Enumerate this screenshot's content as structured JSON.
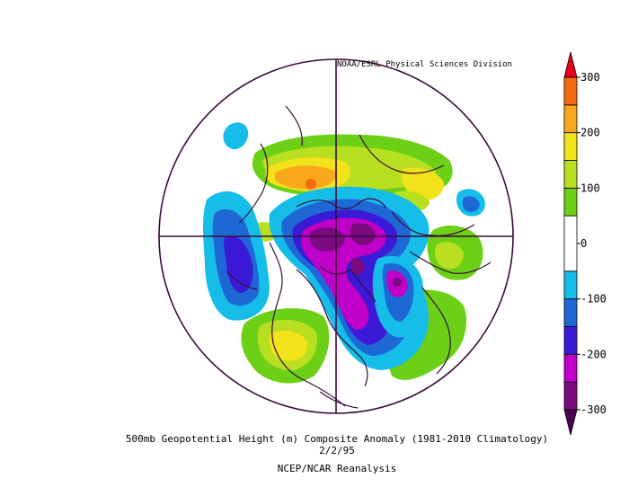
{
  "credit": "NOAA/ESRL Physical Sciences Division",
  "caption": {
    "title": "500mb Geopotential Height (m) Composite Anomaly (1981-2010 Climatology)",
    "date": "2/2/95",
    "source": "NCEP/NCAR Reanalysis"
  },
  "colorbar": {
    "ticks": [
      "300",
      "200",
      "100",
      "0",
      "-100",
      "-200",
      "-300"
    ],
    "bands": [
      {
        "from": -300,
        "to": -250,
        "color": "#7a0a80"
      },
      {
        "from": -250,
        "to": -200,
        "color": "#c000c8"
      },
      {
        "from": -200,
        "to": -150,
        "color": "#3a1ad6"
      },
      {
        "from": -150,
        "to": -100,
        "color": "#1e68d6"
      },
      {
        "from": -100,
        "to": -50,
        "color": "#16bde8"
      },
      {
        "from": -50,
        "to": 50,
        "color": "#ffffff"
      },
      {
        "from": 50,
        "to": 100,
        "color": "#6cd016"
      },
      {
        "from": 100,
        "to": 150,
        "color": "#b8e020"
      },
      {
        "from": 150,
        "to": 200,
        "color": "#f2e21a"
      },
      {
        "from": 200,
        "to": 250,
        "color": "#f8a81a"
      },
      {
        "from": 250,
        "to": 300,
        "color": "#f46a10"
      }
    ],
    "arrow_top_color": "#e8001c",
    "arrow_bottom_color": "#4a0450"
  },
  "map": {
    "projection": "north-polar-stereographic",
    "outline_color": "#3a0a3a"
  }
}
